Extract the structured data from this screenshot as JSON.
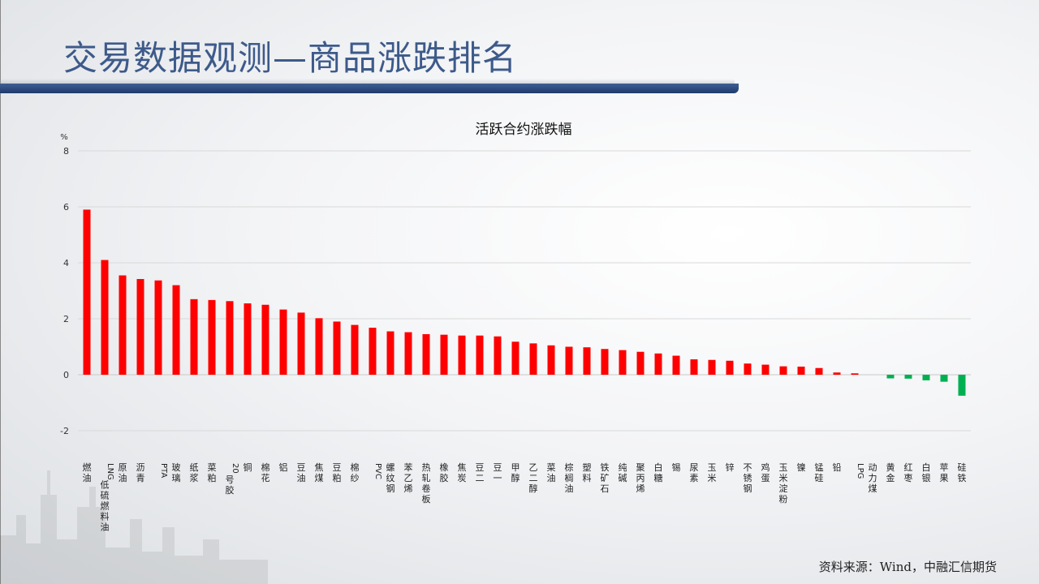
{
  "slide": {
    "title": "交易数据观测—商品涨跌排名",
    "source": "资料来源：Wind，中融汇信期货"
  },
  "colors": {
    "title": "#3d5a8a",
    "banner": "#2a4a7e",
    "positive": "#ff0000",
    "negative": "#00b050"
  },
  "chart_data": {
    "type": "bar",
    "title": "活跃合约涨跌幅",
    "ylabel": "%",
    "xlabel": "",
    "ylim": [
      -2,
      8
    ],
    "yticks": [
      "-2",
      "0",
      "2",
      "4",
      "6",
      "8"
    ],
    "grid": true,
    "legend": "none",
    "categories": [
      "燃油",
      "LNG低硫燃料油",
      "原油",
      "沥青",
      "PTA",
      "玻璃",
      "纸浆",
      "菜粕",
      "20号胶",
      "铜",
      "棉花",
      "铝",
      "豆油",
      "焦煤",
      "豆粕",
      "棉纱",
      "PVC",
      "螺纹钢",
      "苯乙烯",
      "热轧卷板",
      "橡胶",
      "焦炭",
      "豆二",
      "豆一",
      "甲醇",
      "乙二醇",
      "菜油",
      "棕榈油",
      "塑料",
      "铁矿石",
      "纯碱",
      "聚丙烯",
      "白糖",
      "锡",
      "尿素",
      "玉米",
      "锌",
      "不锈钢",
      "鸡蛋",
      "玉米淀粉",
      "镍",
      "锰硅",
      "铅",
      "LPG",
      "动力煤",
      "黄金",
      "红枣",
      "白银",
      "苹果",
      "硅铁"
    ],
    "values": [
      5.9,
      4.1,
      3.55,
      3.42,
      3.37,
      3.2,
      2.7,
      2.67,
      2.63,
      2.55,
      2.5,
      2.33,
      2.22,
      2.02,
      1.9,
      1.78,
      1.68,
      1.55,
      1.52,
      1.45,
      1.43,
      1.4,
      1.4,
      1.37,
      1.18,
      1.12,
      1.05,
      1.0,
      0.98,
      0.92,
      0.88,
      0.82,
      0.76,
      0.68,
      0.55,
      0.53,
      0.5,
      0.4,
      0.36,
      0.3,
      0.29,
      0.24,
      0.08,
      0.05,
      0.0,
      -0.13,
      -0.14,
      -0.2,
      -0.25,
      -0.75
    ]
  }
}
